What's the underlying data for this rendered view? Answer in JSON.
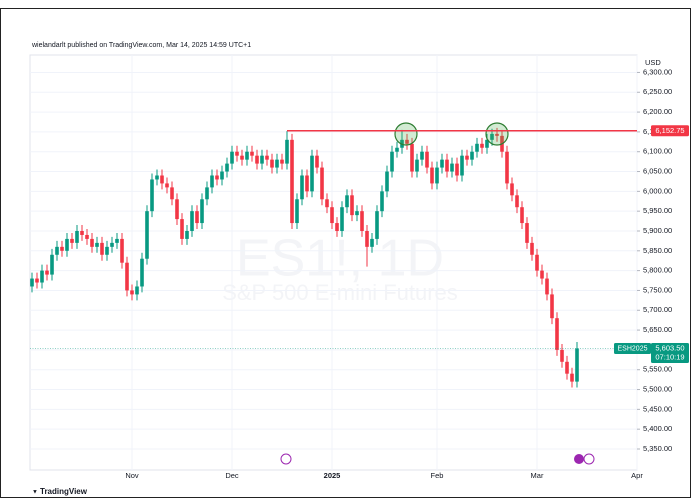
{
  "chart_data": {
    "type": "candlestick",
    "header": "wielandarlt published on TradingView.com, Mar 14, 2025 14:59 UTC+1",
    "watermark_symbol": "ES1!, 1D",
    "watermark_name": "S&P 500 E-mini Futures",
    "axis_label": "USD",
    "logo": "TradingView",
    "up_color": "#089981",
    "down_color": "#f23645",
    "grid": true,
    "ylim": [
      5297,
      6344
    ],
    "yticks": [
      {
        "value": 6300,
        "label": "6,300.00"
      },
      {
        "value": 6250,
        "label": "6,250.00"
      },
      {
        "value": 6200,
        "label": "6,200.00"
      },
      {
        "value": 6150,
        "label": "6,150.00"
      },
      {
        "value": 6100,
        "label": "6,100.00"
      },
      {
        "value": 6050,
        "label": "6,050.00"
      },
      {
        "value": 6000,
        "label": "6,000.00"
      },
      {
        "value": 5950,
        "label": "5,950.00"
      },
      {
        "value": 5900,
        "label": "5,900.00"
      },
      {
        "value": 5850,
        "label": "5,850.00"
      },
      {
        "value": 5800,
        "label": "5,800.00"
      },
      {
        "value": 5750,
        "label": "5,750.00"
      },
      {
        "value": 5700,
        "label": "5,700.00"
      },
      {
        "value": 5650,
        "label": "5,650.00"
      },
      {
        "value": 5600,
        "label": "5,600.00"
      },
      {
        "value": 5550,
        "label": "5,550.00"
      },
      {
        "value": 5500,
        "label": "5,500.00"
      },
      {
        "value": 5450,
        "label": "5,450.00"
      },
      {
        "value": 5400,
        "label": "5,400.00"
      },
      {
        "value": 5350,
        "label": "5,350.00"
      }
    ],
    "categories": [
      null,
      null,
      null,
      null,
      null,
      null,
      null,
      null,
      null,
      null,
      null,
      null,
      null,
      null,
      null,
      null,
      null,
      null,
      null,
      null,
      "Nov",
      null,
      null,
      null,
      null,
      null,
      null,
      null,
      null,
      null,
      null,
      null,
      null,
      null,
      null,
      null,
      null,
      null,
      null,
      null,
      "Dec",
      null,
      null,
      null,
      null,
      null,
      null,
      null,
      null,
      null,
      null,
      null,
      null,
      null,
      null,
      null,
      null,
      null,
      null,
      null,
      "2025",
      null,
      null,
      null,
      null,
      null,
      null,
      null,
      null,
      null,
      null,
      null,
      null,
      null,
      null,
      null,
      null,
      null,
      null,
      null,
      null,
      "Feb",
      null,
      null,
      null,
      null,
      null,
      null,
      null,
      null,
      null,
      null,
      null,
      null,
      null,
      null,
      null,
      null,
      null,
      null,
      null,
      "Mar",
      null,
      null,
      null,
      null,
      null,
      null,
      null,
      null,
      null,
      null,
      null,
      null,
      null,
      null,
      null,
      null,
      null,
      null,
      null,
      "Apr"
    ],
    "open": [
      5760,
      5780,
      5770,
      5800,
      5790,
      5840,
      5860,
      5850,
      5880,
      5870,
      5900,
      5890,
      5880,
      5860,
      5870,
      5840,
      5860,
      5870,
      5880,
      5820,
      5750,
      5740,
      5760,
      5830,
      5950,
      6030,
      6040,
      6020,
      6010,
      5980,
      5930,
      5880,
      5900,
      5950,
      5920,
      5980,
      6010,
      6040,
      6030,
      6050,
      6070,
      6100,
      6090,
      6080,
      6100,
      6090,
      6070,
      6090,
      6080,
      6060,
      6080,
      6070,
      6130,
      5920,
      5980,
      6040,
      6000,
      6090,
      6060,
      5980,
      5960,
      5920,
      5900,
      5960,
      5990,
      5940,
      5950,
      5900,
      5860,
      5880,
      5950,
      6000,
      6050,
      6100,
      6110,
      6130,
      6120,
      6050,
      6080,
      6100,
      6060,
      6020,
      6060,
      6080,
      6050,
      6070,
      6040,
      6090,
      6080,
      6100,
      6120,
      6110,
      6130,
      6145,
      6140,
      6100,
      6020,
      5990,
      5960,
      5920,
      5870,
      5840,
      5800,
      5780,
      5740,
      5680,
      5600,
      5570,
      5540,
      5520,
      null,
      null,
      null,
      null,
      null,
      null,
      null,
      null,
      null,
      null,
      null,
      null
    ],
    "high": [
      5795,
      5795,
      5815,
      5815,
      5855,
      5875,
      5875,
      5895,
      5895,
      5915,
      5915,
      5905,
      5895,
      5885,
      5885,
      5875,
      5885,
      5895,
      5895,
      5835,
      5765,
      5775,
      5845,
      5965,
      6045,
      6055,
      6055,
      6035,
      6025,
      5995,
      5945,
      5915,
      5965,
      5965,
      5995,
      6025,
      6055,
      6055,
      6065,
      6085,
      6115,
      6115,
      6105,
      6115,
      6115,
      6105,
      6105,
      6105,
      6095,
      6095,
      6095,
      6152,
      6145,
      5995,
      6055,
      6055,
      6105,
      6105,
      6075,
      5995,
      5975,
      5935,
      5975,
      6005,
      6005,
      5965,
      5965,
      5915,
      5895,
      5965,
      6015,
      6065,
      6115,
      6125,
      6155,
      6145,
      6135,
      6095,
      6115,
      6115,
      6075,
      6075,
      6095,
      6095,
      6085,
      6085,
      6105,
      6105,
      6115,
      6135,
      6135,
      6145,
      6158,
      6160,
      6155,
      6115,
      6035,
      6005,
      5975,
      5935,
      5885,
      5855,
      5815,
      5795,
      5755,
      5695,
      5615,
      5585,
      5555,
      5620,
      null,
      null,
      null,
      null,
      null,
      null,
      null,
      null,
      null,
      null,
      null,
      null
    ],
    "low": [
      5745,
      5755,
      5755,
      5775,
      5775,
      5825,
      5835,
      5835,
      5855,
      5855,
      5875,
      5865,
      5845,
      5845,
      5825,
      5825,
      5845,
      5855,
      5805,
      5735,
      5725,
      5725,
      5745,
      5815,
      5935,
      6015,
      6005,
      5995,
      5965,
      5915,
      5865,
      5865,
      5885,
      5905,
      5905,
      5965,
      5995,
      6015,
      6015,
      6035,
      6055,
      6075,
      6065,
      6065,
      6075,
      6055,
      6055,
      6065,
      6045,
      6045,
      6055,
      6055,
      5905,
      5905,
      5965,
      5985,
      5985,
      6045,
      5965,
      5945,
      5905,
      5885,
      5885,
      5945,
      5925,
      5925,
      5885,
      5810,
      5845,
      5865,
      5935,
      5985,
      6035,
      6085,
      6095,
      6105,
      6035,
      6035,
      6065,
      6045,
      6005,
      6005,
      6045,
      6035,
      6035,
      6025,
      6025,
      6065,
      6065,
      6085,
      6095,
      6095,
      6115,
      6125,
      6085,
      6005,
      5975,
      5945,
      5905,
      5855,
      5825,
      5785,
      5765,
      5725,
      5665,
      5585,
      5555,
      5525,
      5505,
      5505,
      null,
      null,
      null,
      null,
      null,
      null,
      null,
      null,
      null,
      null,
      null,
      null
    ],
    "close": [
      5780,
      5770,
      5800,
      5790,
      5840,
      5860,
      5850,
      5880,
      5870,
      5900,
      5890,
      5880,
      5860,
      5870,
      5840,
      5860,
      5870,
      5880,
      5820,
      5750,
      5740,
      5760,
      5830,
      5950,
      6030,
      6040,
      6020,
      6010,
      5980,
      5930,
      5880,
      5900,
      5950,
      5920,
      5980,
      6010,
      6040,
      6030,
      6050,
      6070,
      6100,
      6090,
      6080,
      6100,
      6090,
      6070,
      6090,
      6080,
      6060,
      6080,
      6070,
      6130,
      5920,
      5980,
      6040,
      6000,
      6090,
      6060,
      5980,
      5960,
      5920,
      5900,
      5960,
      5990,
      5940,
      5950,
      5900,
      5860,
      5880,
      5950,
      6000,
      6050,
      6100,
      6110,
      6130,
      6120,
      6050,
      6080,
      6100,
      6060,
      6020,
      6060,
      6080,
      6050,
      6070,
      6040,
      6090,
      6080,
      6100,
      6120,
      6110,
      6130,
      6145,
      6140,
      6100,
      6020,
      5990,
      5960,
      5920,
      5870,
      5840,
      5800,
      5780,
      5740,
      5680,
      5600,
      5570,
      5540,
      5520,
      5603.5,
      null,
      null,
      null,
      null,
      null,
      null,
      null,
      null,
      null,
      null,
      null,
      null
    ],
    "resistance": {
      "value": 6152.75,
      "label": "6,152.75",
      "color": "#f23645"
    },
    "last_price": {
      "value": 5603.5,
      "label": "5,603.50",
      "color": "#089981"
    },
    "symbol_label": "ESH2025",
    "countdown": "07:10:19"
  }
}
